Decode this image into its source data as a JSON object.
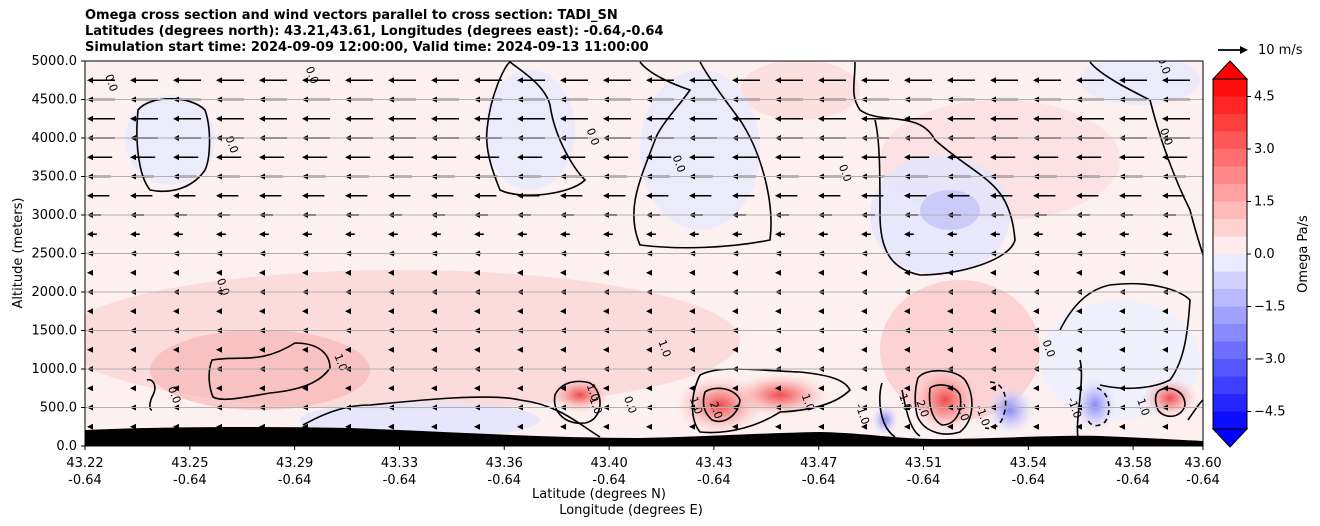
{
  "header": {
    "title_line1": "Omega cross section and wind vectors parallel to cross section: TADI_SN",
    "title_line2": "Latitudes (degrees north): 43.21,43.61, Longitudes (degrees east): -0.64,-0.64",
    "title_line3": "Simulation start time: 2024-09-09 12:00:00, Valid time: 2024-09-13 11:00:00"
  },
  "chart_data": {
    "type": "heatmap",
    "title": "Omega cross section and wind vectors parallel to cross section: TADI_SN",
    "ylabel": "Altitude (meters)",
    "xlabel_line1": "Latitude (degrees N)",
    "xlabel_line2": "Longitude (degrees E)",
    "ylim": [
      0,
      5000
    ],
    "y_ticks": [
      "0.0",
      "500.0",
      "1000.0",
      "1500.0",
      "2000.0",
      "2500.0",
      "3000.0",
      "3500.0",
      "4000.0",
      "4500.0",
      "5000.0"
    ],
    "y_tick_values": [
      0,
      500,
      1000,
      1500,
      2000,
      2500,
      3000,
      3500,
      4000,
      4500,
      5000
    ],
    "x_ticks_lat": [
      "43.22",
      "43.25",
      "43.29",
      "43.33",
      "43.36",
      "43.40",
      "43.43",
      "43.47",
      "43.51",
      "43.54",
      "43.58",
      "43.60"
    ],
    "x_ticks_lon": [
      "-0.64",
      "-0.64",
      "-0.64",
      "-0.64",
      "-0.64",
      "-0.64",
      "-0.64",
      "-0.64",
      "-0.64",
      "-0.64",
      "-0.64",
      "-0.64"
    ],
    "x_tick_fraction": [
      0,
      0.0938,
      0.1875,
      0.2813,
      0.375,
      0.4688,
      0.5625,
      0.6563,
      0.75,
      0.8438,
      0.9375,
      1.0
    ],
    "colorbar": {
      "label": "Omega Pa/s",
      "ticks": [
        "4.5",
        "3.0",
        "1.5",
        "0.0",
        "−1.5",
        "−3.0",
        "−4.5"
      ],
      "tick_values": [
        4.5,
        3.0,
        1.5,
        0.0,
        -1.5,
        -3.0,
        -4.5
      ],
      "range": [
        -5,
        5
      ],
      "negative_color": "#0000ff",
      "positive_color": "#ff0000",
      "neutral_color": "#ffffff"
    },
    "wind_reference": {
      "label": "10 m/s",
      "speed": 10
    },
    "wind_rows": [
      {
        "altitude": 4750,
        "speed": 10
      },
      {
        "altitude": 4500,
        "speed": 10
      },
      {
        "altitude": 4250,
        "speed": 10
      },
      {
        "altitude": 4000,
        "speed": 10
      },
      {
        "altitude": 3750,
        "speed": 9
      },
      {
        "altitude": 3500,
        "speed": 8.5
      },
      {
        "altitude": 3250,
        "speed": 8
      },
      {
        "altitude": 3000,
        "speed": 5
      },
      {
        "altitude": 2750,
        "speed": 3.5
      },
      {
        "altitude": 2500,
        "speed": 2.5
      },
      {
        "altitude": 2250,
        "speed": 2
      },
      {
        "altitude": 2000,
        "speed": 1.5
      },
      {
        "altitude": 1750,
        "speed": 1.2
      },
      {
        "altitude": 1500,
        "speed": 1
      },
      {
        "altitude": 1250,
        "speed": 0.8
      },
      {
        "altitude": 1000,
        "speed": 0.7
      },
      {
        "altitude": 750,
        "speed": 1.2
      },
      {
        "altitude": 500,
        "speed": 1.5
      },
      {
        "altitude": 250,
        "speed": 1
      }
    ],
    "contour_labels": [
      {
        "text": "0.0",
        "lat": 43.223,
        "alt": 4700
      },
      {
        "text": "0.0",
        "lat": 43.293,
        "alt": 4800
      },
      {
        "text": "0.0",
        "lat": 43.265,
        "alt": 3900
      },
      {
        "text": "0.0",
        "lat": 43.262,
        "alt": 2050
      },
      {
        "text": "0.0",
        "lat": 43.245,
        "alt": 650
      },
      {
        "text": "1.0",
        "lat": 43.303,
        "alt": 1070
      },
      {
        "text": "0.0",
        "lat": 43.391,
        "alt": 4000
      },
      {
        "text": "0.0",
        "lat": 43.421,
        "alt": 3650
      },
      {
        "text": "0.0",
        "lat": 43.479,
        "alt": 3530
      },
      {
        "text": "0.0",
        "lat": 43.591,
        "alt": 4000
      },
      {
        "text": "1.0",
        "lat": 43.416,
        "alt": 1250
      },
      {
        "text": "1.0",
        "lat": 43.391,
        "alt": 680
      },
      {
        "text": "1.0",
        "lat": 43.392,
        "alt": 510
      },
      {
        "text": "0.0",
        "lat": 43.404,
        "alt": 520
      },
      {
        "text": "1.0",
        "lat": 43.427,
        "alt": 510
      },
      {
        "text": "2.0",
        "lat": 43.434,
        "alt": 450
      },
      {
        "text": "1.0",
        "lat": 43.466,
        "alt": 550
      },
      {
        "text": "-1.0",
        "lat": 43.485,
        "alt": 400
      },
      {
        "text": "1.0",
        "lat": 43.5,
        "alt": 550
      },
      {
        "text": "2.0",
        "lat": 43.506,
        "alt": 470
      },
      {
        "text": "3.0",
        "lat": 43.52,
        "alt": 420
      },
      {
        "text": "-1.0",
        "lat": 43.527,
        "alt": 380
      },
      {
        "text": "0.0",
        "lat": 43.55,
        "alt": 1250
      },
      {
        "text": "-1.0",
        "lat": 43.559,
        "alt": 480
      },
      {
        "text": "1.0",
        "lat": 43.583,
        "alt": 490
      },
      {
        "text": "-0.0",
        "lat": 43.59,
        "alt": 4950
      }
    ]
  }
}
